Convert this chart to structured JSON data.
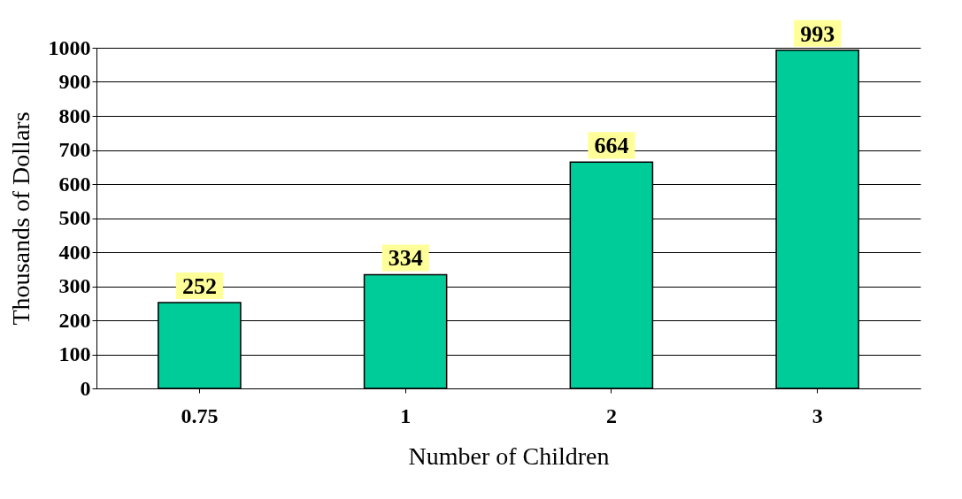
{
  "chart_data": {
    "type": "bar",
    "xlabel": "Number of Children",
    "ylabel": "Thousands of Dollars",
    "categories": [
      "0.75",
      "1",
      "2",
      "3"
    ],
    "values": [
      252,
      334,
      664,
      993
    ],
    "color": "#00cc99",
    "ylim": [
      0,
      1000
    ],
    "yticks": [
      0,
      100,
      200,
      300,
      400,
      500,
      600,
      700,
      800,
      900,
      1000
    ],
    "grid": "y",
    "data_labels": true
  }
}
